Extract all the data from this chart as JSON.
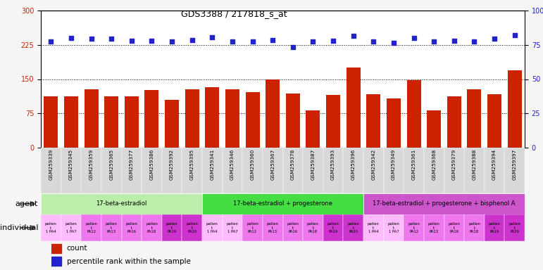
{
  "title": "GDS3388 / 217818_s_at",
  "samples": [
    "GSM259339",
    "GSM259345",
    "GSM259359",
    "GSM259365",
    "GSM259377",
    "GSM259386",
    "GSM259392",
    "GSM259395",
    "GSM259341",
    "GSM259346",
    "GSM259360",
    "GSM259367",
    "GSM259378",
    "GSM259387",
    "GSM259393",
    "GSM259396",
    "GSM259342",
    "GSM259349",
    "GSM259361",
    "GSM259368",
    "GSM259379",
    "GSM259388",
    "GSM259394",
    "GSM259397"
  ],
  "bar_values": [
    112,
    113,
    128,
    113,
    112,
    126,
    105,
    128,
    133,
    127,
    122,
    150,
    118,
    82,
    116,
    175,
    117,
    107,
    148,
    82,
    113,
    128,
    117,
    170
  ],
  "percentile_values": [
    232,
    240,
    238,
    238,
    234,
    234,
    232,
    236,
    242,
    232,
    232,
    236,
    220,
    232,
    234,
    244,
    232,
    230,
    240,
    232,
    234,
    232,
    238,
    246
  ],
  "bar_color": "#cc2200",
  "percentile_color": "#2222cc",
  "ylim_left": [
    0,
    300
  ],
  "ylim_right": [
    0,
    100
  ],
  "yticks_left": [
    0,
    75,
    150,
    225,
    300
  ],
  "yticks_right": [
    0,
    25,
    50,
    75,
    100
  ],
  "dotted_lines": [
    75,
    150,
    225
  ],
  "agent_groups": [
    {
      "label": "17-beta-estradiol",
      "start": 0,
      "end": 8,
      "color": "#bbeeaa"
    },
    {
      "label": "17-beta-estradiol + progesterone",
      "start": 8,
      "end": 16,
      "color": "#44dd44"
    },
    {
      "label": "17-beta-estradiol + progesterone + bisphenol A",
      "start": 16,
      "end": 24,
      "color": "#cc55cc"
    }
  ],
  "individual_short": [
    "1 PA4",
    "1 PA7",
    "PA12",
    "PA13",
    "PA16",
    "PA18",
    "PA19",
    "PA20",
    "1 PA4",
    "1 PA7",
    "PA12",
    "PA13",
    "PA16",
    "PA18",
    "PA19",
    "PA20",
    "1 PA4",
    "1 PA7",
    "PA12",
    "PA13",
    "PA16",
    "PA18",
    "PA19",
    "PA20"
  ],
  "ind_colors_light": [
    "#ffaaff",
    "#ffaaff"
  ],
  "ind_colors_mid": [
    "#ee77ee"
  ],
  "ind_colors_dark": [
    "#dd22dd"
  ],
  "background_color": "#f2f2f2",
  "xticklabel_bg": "#dddddd",
  "plot_bg": "#ffffff",
  "left_label_color": "#555555"
}
